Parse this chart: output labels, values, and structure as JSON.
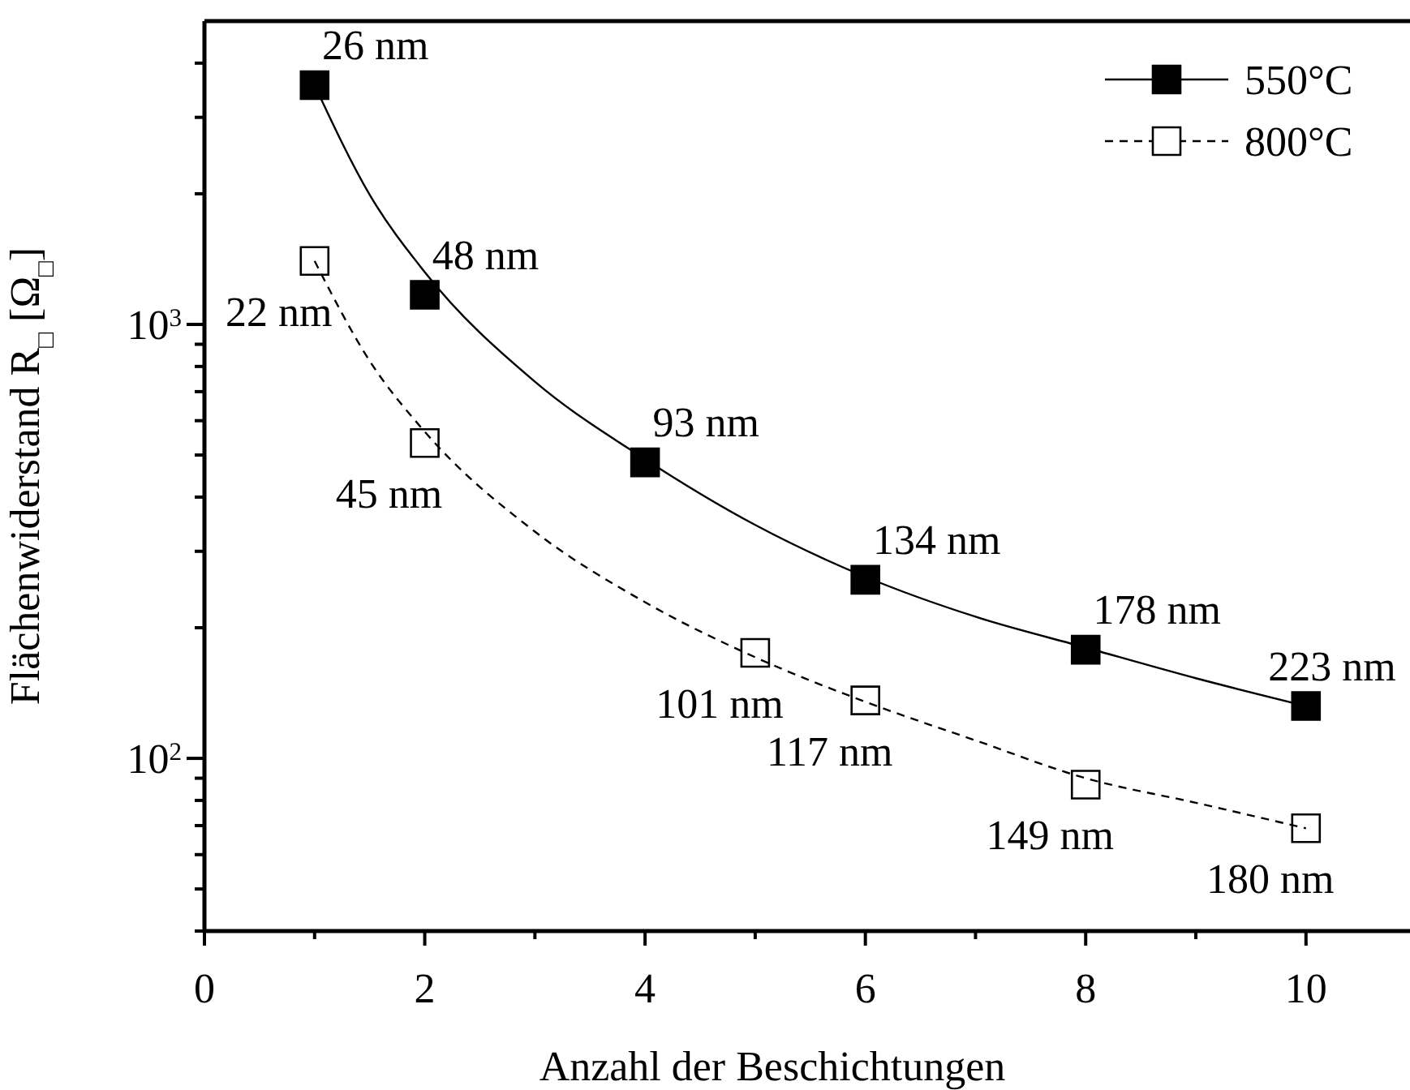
{
  "chart_data": {
    "type": "scatter",
    "xlabel": "Anzahl der Beschichtungen",
    "ylabel": "Flächenwiderstand R$_{□}$ [Ω$_{□}$]",
    "xlim": [
      0,
      10.9
    ],
    "xticks": [
      0,
      {
        "value": 1,
        "label": null
      },
      2,
      {
        "value": 3,
        "label": null
      },
      4,
      {
        "value": 5,
        "label": null
      },
      6,
      {
        "value": 7,
        "label": null
      },
      8,
      {
        "value": 9,
        "label": null
      },
      10
    ],
    "ylim": [
      40,
      5000
    ],
    "yticks": [
      {
        "value": 40,
        "label": null
      },
      {
        "value": 50,
        "label": null
      },
      {
        "value": 60,
        "label": null
      },
      {
        "value": 70,
        "label": null
      },
      {
        "value": 80,
        "label": null
      },
      {
        "value": 90,
        "label": null
      },
      {
        "value": 100,
        "label": "10$^{2}$"
      },
      {
        "value": 200,
        "label": null
      },
      {
        "value": 300,
        "label": null
      },
      {
        "value": 400,
        "label": null
      },
      {
        "value": 500,
        "label": null
      },
      {
        "value": 600,
        "label": null
      },
      {
        "value": 700,
        "label": null
      },
      {
        "value": 800,
        "label": null
      },
      {
        "value": 900,
        "label": null
      },
      {
        "value": 1000,
        "label": "10$^{3}$"
      },
      {
        "value": 2000,
        "label": null
      },
      {
        "value": 3000,
        "label": null
      },
      {
        "value": 4000,
        "label": null
      }
    ],
    "log": "y",
    "grid": false,
    "legend": "top right",
    "series": [
      {
        "name": "550°C",
        "marker": "square",
        "color": "#000000",
        "x": [
          1,
          2,
          4,
          6,
          8,
          10
        ],
        "values": [
          3560,
          1170,
          481,
          258,
          178,
          132
        ]
      },
      {
        "type": "line",
        "line_style": "solid",
        "marker": "none",
        "color": "#000000",
        "x": [
          1,
          1.5,
          2,
          3,
          4,
          5,
          6,
          7,
          8,
          9,
          10
        ],
        "values": [
          3560,
          1990,
          1320,
          738,
          489,
          345,
          262,
          212,
          180,
          153,
          132
        ]
      },
      {
        "name": "800°C",
        "marker": "square",
        "color": "#000000",
        "colors": [
          "#ffffff",
          "#ffffff",
          "#ffffff",
          "#ffffff",
          "#ffffff",
          "#ffffff"
        ],
        "x": [
          1,
          2,
          5,
          6,
          8,
          10
        ],
        "values": [
          1400,
          533,
          175,
          136,
          87,
          69
        ]
      },
      {
        "type": "line",
        "line_style": "dashed",
        "marker": "none",
        "color": "#000000",
        "x": [
          1,
          1.5,
          2,
          3,
          4,
          5,
          6,
          7,
          8,
          9,
          10
        ],
        "values": [
          1400,
          824,
          566,
          333,
          229,
          171,
          135,
          110,
          90,
          79,
          69
        ]
      }
    ],
    "annotations": [
      {
        "text": "26 nm",
        "x": 1,
        "y": 3560
      },
      {
        "text": "48 nm",
        "x": 2,
        "y": 1170
      },
      {
        "text": "93 nm",
        "x": 4,
        "y": 481
      },
      {
        "text": "134 nm",
        "x": 6,
        "y": 258
      },
      {
        "text": "178 nm",
        "x": 8,
        "y": 178
      },
      {
        "text": "223 nm",
        "x": 10,
        "y": 132
      },
      {
        "text": "22 nm",
        "x": 1,
        "y": 1400
      },
      {
        "text": "45 nm",
        "x": 2,
        "y": 533
      },
      {
        "text": "101 nm",
        "x": 5,
        "y": 175
      },
      {
        "text": "117 nm",
        "x": 6,
        "y": 136
      },
      {
        "text": "149 nm",
        "x": 8,
        "y": 87
      },
      {
        "text": "180 nm",
        "x": 10,
        "y": 69
      }
    ]
  }
}
